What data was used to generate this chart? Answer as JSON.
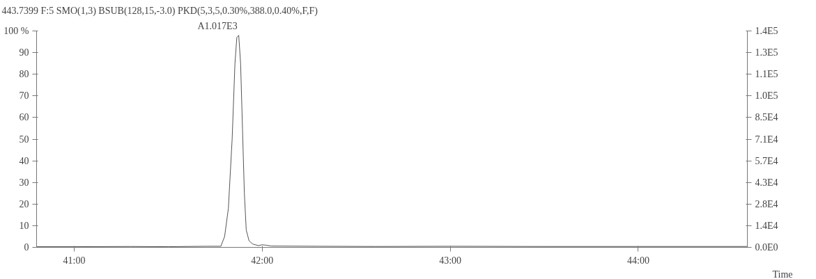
{
  "chart_data": {
    "type": "line",
    "title": "443.7399 F:5 SMO(1,3) BSUB(128,15,-3.0) PKD(5,3,5,0.30%,388.0,0.40%,F,F)",
    "xlabel": "Time",
    "x": [
      40.8,
      41.0,
      41.3,
      41.5,
      41.7,
      41.78,
      41.8,
      41.82,
      41.84,
      41.855,
      41.865,
      41.875,
      41.885,
      41.895,
      41.905,
      41.915,
      41.93,
      41.95,
      41.98,
      42.0,
      42.02,
      42.05,
      42.3,
      42.6,
      43.0,
      43.5,
      44.0,
      44.58
    ],
    "series": [
      {
        "color": "#555555",
        "values": [
          0.3,
          0.3,
          0.4,
          0.3,
          0.5,
          0.5,
          5,
          18,
          50,
          85,
          97,
          98,
          85,
          55,
          25,
          8,
          3,
          1.5,
          0.8,
          1.2,
          1.0,
          0.6,
          0.5,
          0.4,
          0.5,
          0.4,
          0.4,
          0.4
        ]
      }
    ],
    "annotations": [
      "A1.017E3"
    ],
    "xlim": [
      40.8,
      44.58
    ],
    "xticks": [
      {
        "value": 41,
        "label": "41:00"
      },
      {
        "value": 42,
        "label": "42:00"
      },
      {
        "value": 43,
        "label": "43:00"
      },
      {
        "value": 44,
        "label": "44:00"
      }
    ],
    "ylim": [
      0,
      100
    ],
    "yticks": [
      0,
      10,
      20,
      30,
      40,
      50,
      60,
      70,
      80,
      90,
      {
        "value": 100,
        "label": "100 %"
      }
    ],
    "y2lim": [
      0,
      142000
    ],
    "y2ticks": [
      {
        "value": 0,
        "label": "0.0E0"
      },
      {
        "value": 14200,
        "label": "1.4E4"
      },
      {
        "value": 28400,
        "label": "2.8E4"
      },
      {
        "value": 42600,
        "label": "4.3E4"
      },
      {
        "value": 56800,
        "label": "5.7E4"
      },
      {
        "value": 71000,
        "label": "7.1E4"
      },
      {
        "value": 85200,
        "label": "8.5E4"
      },
      {
        "value": 99400,
        "label": "1.0E5"
      },
      {
        "value": 113600,
        "label": "1.1E5"
      },
      {
        "value": 127800,
        "label": "1.3E5"
      },
      {
        "value": 142000,
        "label": "1.4E5"
      }
    ],
    "grid": false
  }
}
